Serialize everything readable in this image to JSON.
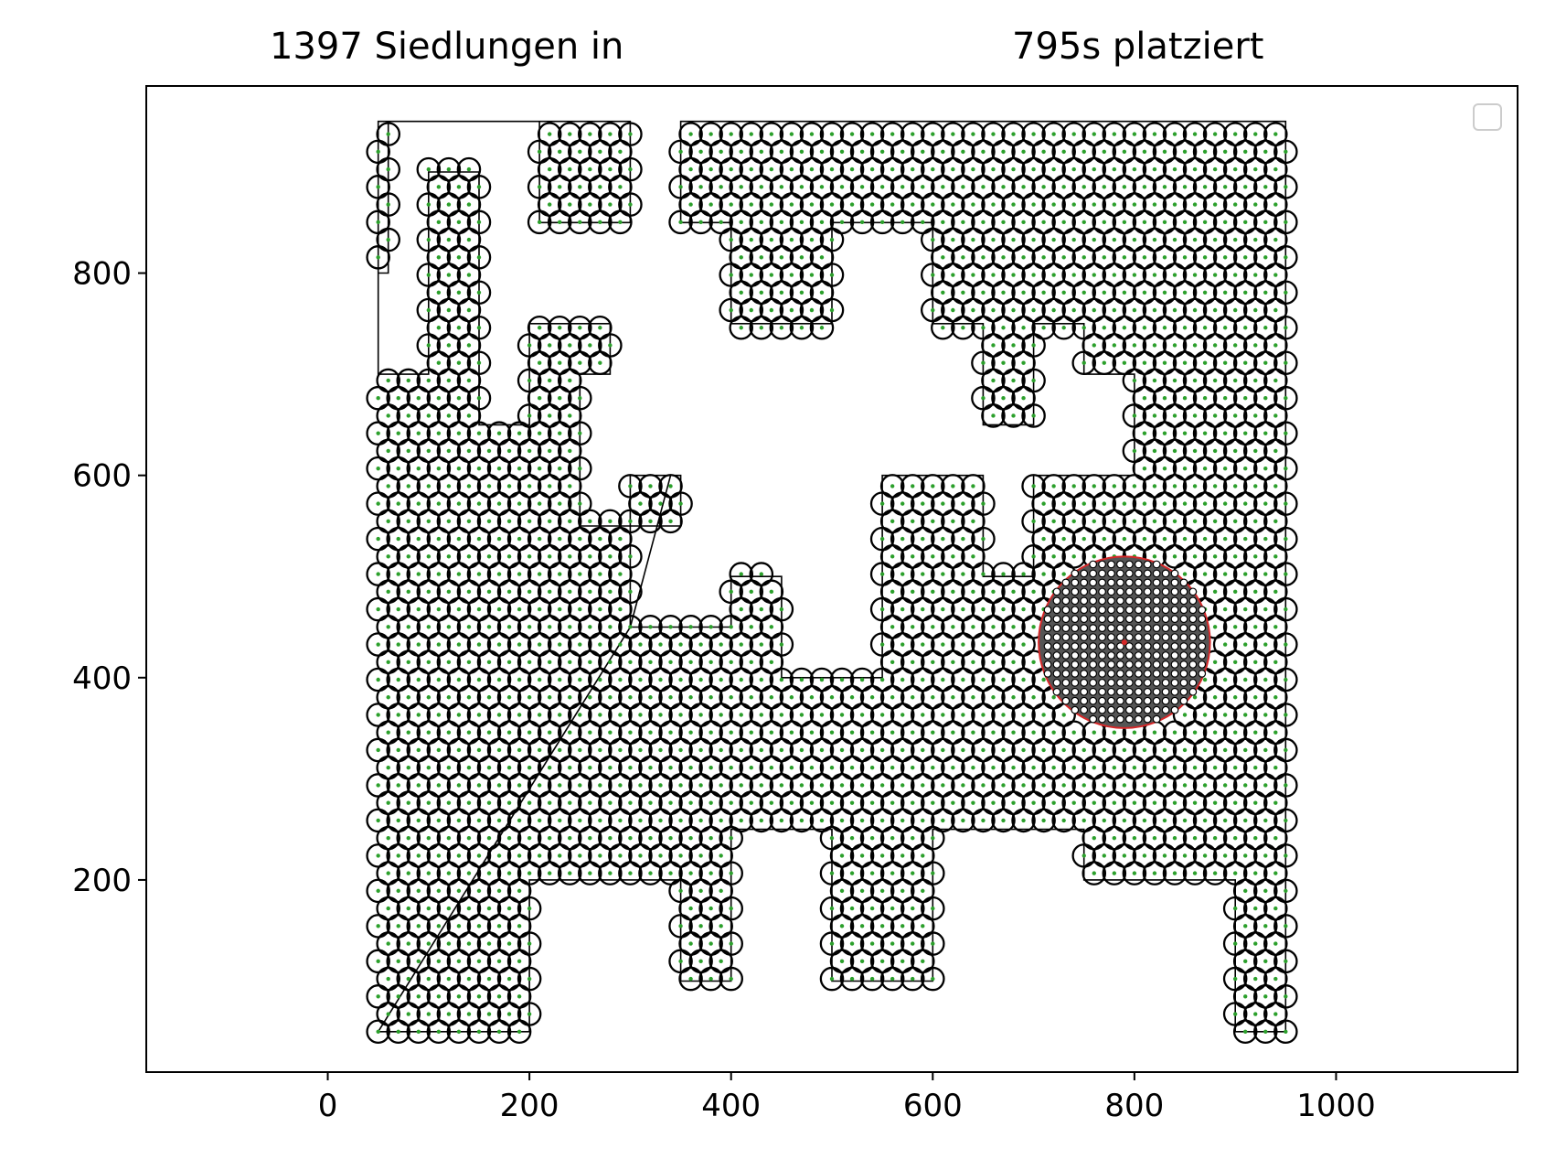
{
  "title_left": "1397 Siedlungen in",
  "title_right": "795s platziert",
  "chart_data": {
    "type": "scatter",
    "title": "1397 Siedlungen in 795s platziert",
    "xlabel": "",
    "ylabel": "",
    "xlim": [
      -180,
      1180
    ],
    "ylim": [
      10,
      985
    ],
    "xticks": [
      0,
      200,
      400,
      600,
      800,
      1000
    ],
    "yticks": [
      200,
      400,
      600,
      800
    ],
    "xtick_labels": [
      "0",
      "200",
      "400",
      "600",
      "800",
      "1000"
    ],
    "ytick_labels": [
      "200",
      "400",
      "600",
      "800"
    ],
    "grid": false,
    "legend": "top-right (empty)",
    "settlement_count": 1397,
    "settlement_spacing": 20,
    "boundary_polygon": [
      [
        50,
        50
      ],
      [
        200,
        50
      ],
      [
        200,
        200
      ],
      [
        350,
        200
      ],
      [
        350,
        100
      ],
      [
        400,
        100
      ],
      [
        400,
        250
      ],
      [
        500,
        250
      ],
      [
        500,
        100
      ],
      [
        600,
        100
      ],
      [
        600,
        250
      ],
      [
        750,
        250
      ],
      [
        750,
        200
      ],
      [
        900,
        200
      ],
      [
        900,
        50
      ],
      [
        950,
        50
      ],
      [
        950,
        950
      ],
      [
        350,
        950
      ],
      [
        350,
        850
      ],
      [
        400,
        850
      ],
      [
        400,
        750
      ],
      [
        500,
        750
      ],
      [
        500,
        850
      ],
      [
        600,
        850
      ],
      [
        600,
        750
      ],
      [
        650,
        750
      ],
      [
        650,
        650
      ],
      [
        700,
        650
      ],
      [
        700,
        750
      ],
      [
        750,
        750
      ],
      [
        750,
        700
      ],
      [
        800,
        700
      ],
      [
        800,
        600
      ],
      [
        700,
        600
      ],
      [
        700,
        500
      ],
      [
        650,
        500
      ],
      [
        650,
        600
      ],
      [
        550,
        600
      ],
      [
        550,
        400
      ],
      [
        450,
        400
      ],
      [
        450,
        500
      ],
      [
        400,
        500
      ],
      [
        400,
        450
      ],
      [
        300,
        450
      ],
      [
        300,
        600
      ],
      [
        350,
        600
      ],
      [
        350,
        550
      ],
      [
        250,
        550
      ],
      [
        250,
        700
      ],
      [
        280,
        700
      ],
      [
        280,
        750
      ],
      [
        200,
        750
      ],
      [
        200,
        650
      ],
      [
        150,
        650
      ],
      [
        150,
        900
      ],
      [
        100,
        900
      ],
      [
        100,
        700
      ],
      [
        50,
        700
      ],
      [
        50,
        800
      ],
      [
        60,
        800
      ],
      [
        60,
        950
      ],
      [
        300,
        950
      ],
      [
        300,
        850
      ],
      [
        210,
        850
      ],
      [
        210,
        950
      ],
      [
        50,
        950
      ],
      [
        50,
        750
      ]
    ],
    "border_segments": [
      [
        [
          50,
          50
        ],
        [
          300,
          450
        ]
      ],
      [
        [
          300,
          450
        ],
        [
          340,
          600
        ]
      ]
    ],
    "dense_cluster": {
      "center": [
        790,
        435
      ],
      "radius": 85,
      "spacing": 9
    },
    "marker_style": {
      "settlement": "black open circle with green center dot",
      "cluster": "black open circle with white fill",
      "cluster_edge_color": "#d62728"
    },
    "colors": {
      "axis": "#000000",
      "marker_edge": "#000000",
      "center_dot": "#2ca02c",
      "cluster_edge": "#d62728",
      "background": "#ffffff"
    }
  }
}
